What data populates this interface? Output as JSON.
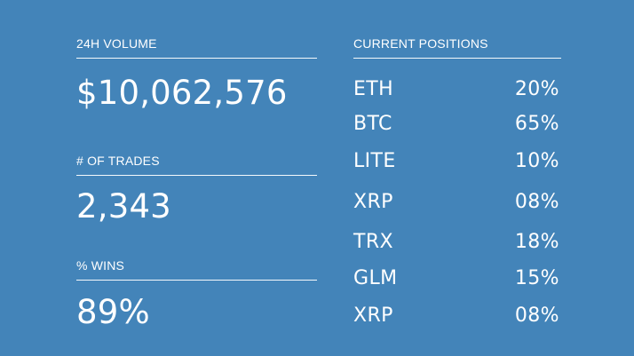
{
  "metrics": {
    "volume": {
      "label": "24H VOLUME",
      "value": "$10,062,576"
    },
    "trades": {
      "label": "# OF TRADES",
      "value": "2,343"
    },
    "wins": {
      "label": "% WINS",
      "value": "89%"
    }
  },
  "positions": {
    "label": "CURRENT POSITIONS",
    "rows": [
      {
        "symbol": "ETH",
        "percent": "20%"
      },
      {
        "symbol": "BTC",
        "percent": "65%"
      },
      {
        "symbol": "LITE",
        "percent": "10%"
      },
      {
        "symbol": "XRP",
        "percent": "08%"
      },
      {
        "symbol": "TRX",
        "percent": "18%"
      },
      {
        "symbol": "GLM",
        "percent": "15%"
      },
      {
        "symbol": "XRP",
        "percent": "08%"
      }
    ]
  },
  "colors": {
    "background": "#4384b9",
    "text": "#ffffff"
  }
}
